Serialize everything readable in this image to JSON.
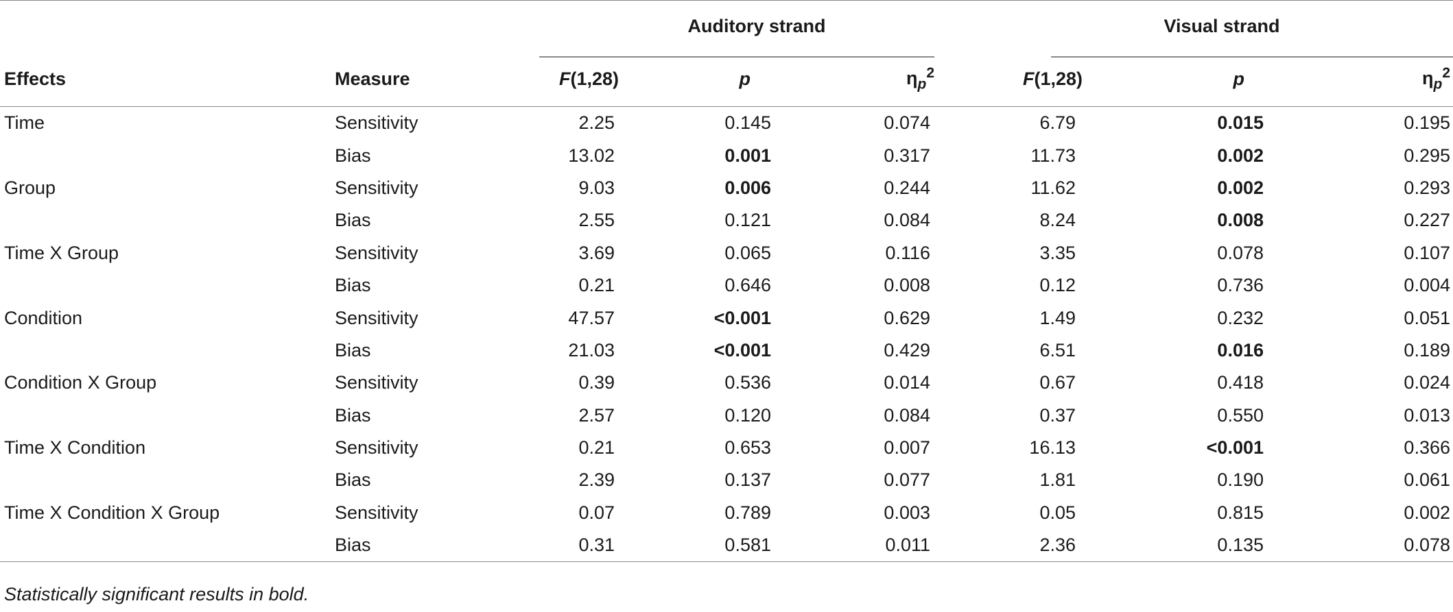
{
  "header": {
    "auditory_strand": "Auditory strand",
    "visual_strand": "Visual strand",
    "effects": "Effects",
    "measure": "Measure",
    "f_label_italic": "F",
    "f_label_rest": "(1,28)",
    "p_label": "p",
    "eta_base": "η",
    "eta_sub": "p",
    "eta_sup": "2"
  },
  "rows": [
    {
      "effect": "Time",
      "measure": "Sensitivity",
      "aF": "2.25",
      "ap": "0.145",
      "aBold": false,
      "aEta": "0.074",
      "vF": "6.79",
      "vp": "0.015",
      "vBold": true,
      "vEta": "0.195"
    },
    {
      "effect": "",
      "measure": "Bias",
      "aF": "13.02",
      "ap": "0.001",
      "aBold": true,
      "aEta": "0.317",
      "vF": "11.73",
      "vp": "0.002",
      "vBold": true,
      "vEta": "0.295"
    },
    {
      "effect": "Group",
      "measure": "Sensitivity",
      "aF": "9.03",
      "ap": "0.006",
      "aBold": true,
      "aEta": "0.244",
      "vF": "11.62",
      "vp": "0.002",
      "vBold": true,
      "vEta": "0.293"
    },
    {
      "effect": "",
      "measure": "Bias",
      "aF": "2.55",
      "ap": "0.121",
      "aBold": false,
      "aEta": "0.084",
      "vF": "8.24",
      "vp": "0.008",
      "vBold": true,
      "vEta": "0.227"
    },
    {
      "effect": "Time X Group",
      "measure": "Sensitivity",
      "aF": "3.69",
      "ap": "0.065",
      "aBold": false,
      "aEta": "0.116",
      "vF": "3.35",
      "vp": "0.078",
      "vBold": false,
      "vEta": "0.107"
    },
    {
      "effect": "",
      "measure": "Bias",
      "aF": "0.21",
      "ap": "0.646",
      "aBold": false,
      "aEta": "0.008",
      "vF": "0.12",
      "vp": "0.736",
      "vBold": false,
      "vEta": "0.004"
    },
    {
      "effect": "Condition",
      "measure": "Sensitivity",
      "aF": "47.57",
      "ap": "<0.001",
      "aBold": true,
      "aEta": "0.629",
      "vF": "1.49",
      "vp": "0.232",
      "vBold": false,
      "vEta": "0.051"
    },
    {
      "effect": "",
      "measure": "Bias",
      "aF": "21.03",
      "ap": "<0.001",
      "aBold": true,
      "aEta": "0.429",
      "vF": "6.51",
      "vp": "0.016",
      "vBold": true,
      "vEta": "0.189"
    },
    {
      "effect": "Condition X Group",
      "measure": "Sensitivity",
      "aF": "0.39",
      "ap": "0.536",
      "aBold": false,
      "aEta": "0.014",
      "vF": "0.67",
      "vp": "0.418",
      "vBold": false,
      "vEta": "0.024"
    },
    {
      "effect": "",
      "measure": "Bias",
      "aF": "2.57",
      "ap": "0.120",
      "aBold": false,
      "aEta": "0.084",
      "vF": "0.37",
      "vp": "0.550",
      "vBold": false,
      "vEta": "0.013"
    },
    {
      "effect": "Time X Condition",
      "measure": "Sensitivity",
      "aF": "0.21",
      "ap": "0.653",
      "aBold": false,
      "aEta": "0.007",
      "vF": "16.13",
      "vp": "<0.001",
      "vBold": true,
      "vEta": "0.366"
    },
    {
      "effect": "",
      "measure": "Bias",
      "aF": "2.39",
      "ap": "0.137",
      "aBold": false,
      "aEta": "0.077",
      "vF": "1.81",
      "vp": "0.190",
      "vBold": false,
      "vEta": "0.061"
    },
    {
      "effect": "Time X Condition X Group",
      "measure": "Sensitivity",
      "aF": "0.07",
      "ap": "0.789",
      "aBold": false,
      "aEta": "0.003",
      "vF": "0.05",
      "vp": "0.815",
      "vBold": false,
      "vEta": "0.002"
    },
    {
      "effect": "",
      "measure": "Bias",
      "aF": "0.31",
      "ap": "0.581",
      "aBold": false,
      "aEta": "0.011",
      "vF": "2.36",
      "vp": "0.135",
      "vBold": false,
      "vEta": "0.078"
    }
  ],
  "footnote": "Statistically significant results in bold."
}
